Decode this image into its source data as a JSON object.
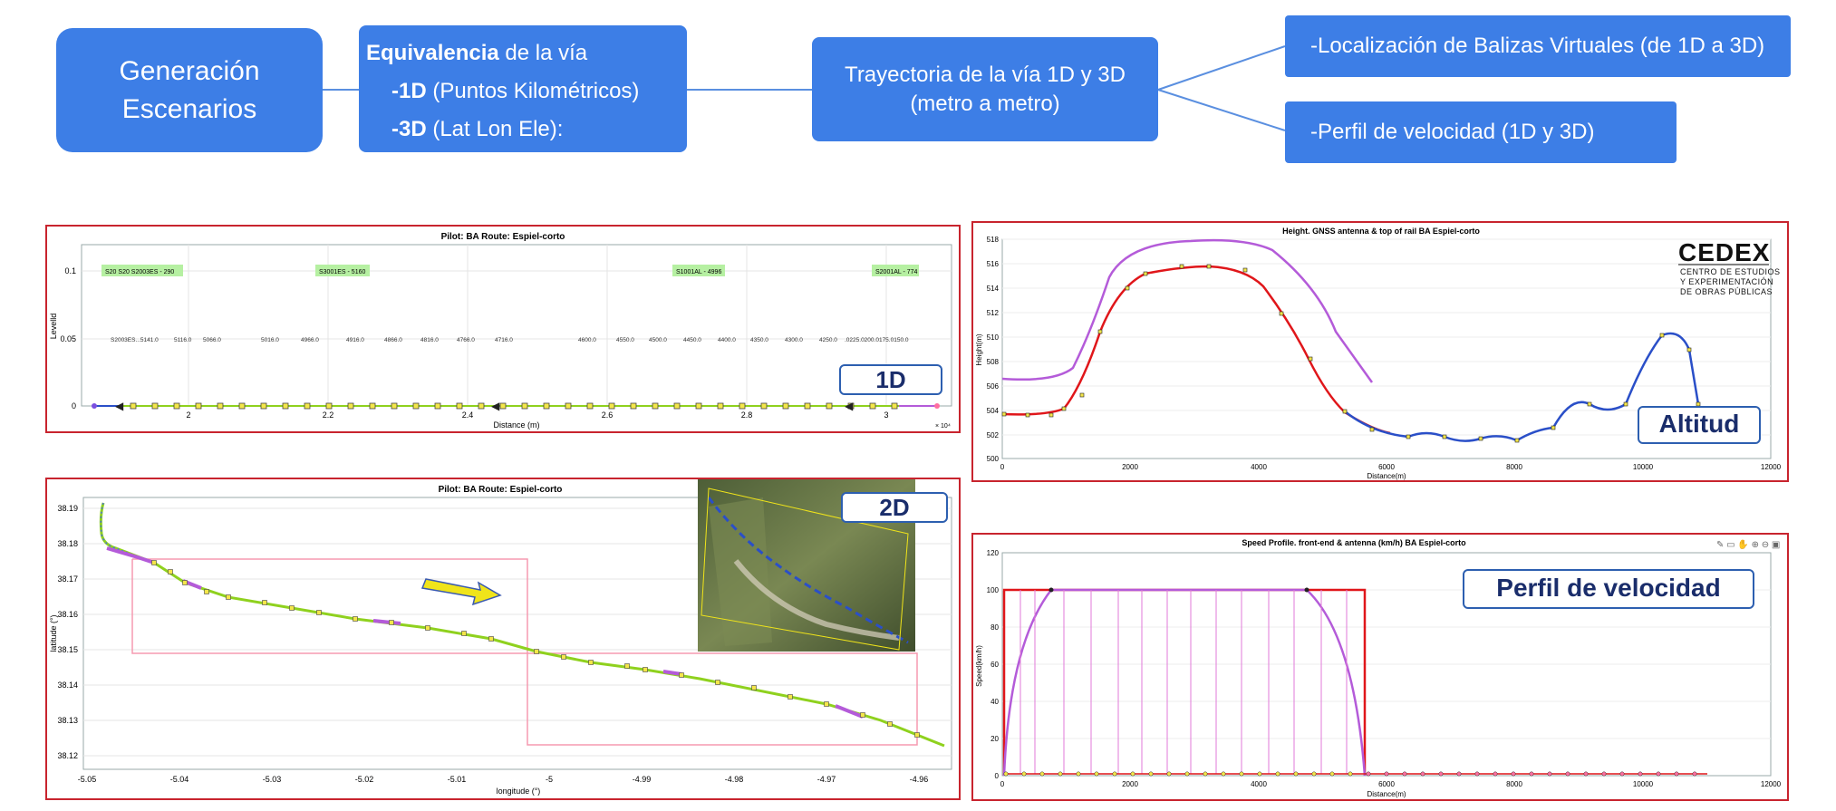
{
  "flow": {
    "generacion": {
      "line1": "Generación",
      "line2": "Escenarios"
    },
    "equivalencia": {
      "title_bold": "Equivalencia",
      "title_rest": " de la vía",
      "item1_bold": "-1D",
      "item1_rest": " (Puntos Kilométricos)",
      "item2_bold": "-3D",
      "item2_rest": " (Lat Lon Ele):"
    },
    "trayectoria": {
      "line1": "Trayectoria de la vía 1D y 3D",
      "line2": "(metro a metro)"
    },
    "balizas": "-Localización de Balizas Virtuales (de 1D a 3D)",
    "perfil": "-Perfil de velocidad (1D y 3D)"
  },
  "panels": {
    "p1d": {
      "title": "Pilot:  BA   Route: Espiel-corto",
      "ylabel": "Levelld",
      "xlabel": "Distance (m)",
      "x_exponent": "× 10⁴",
      "tag": "1D",
      "green_labels": [
        "S20  S20  S2003ES - 290",
        "S3001ES - 5160",
        "S1001AL - 4996",
        "S2001AL - 774"
      ],
      "pk_labels": [
        "5116.0",
        "5066.0",
        "5016.0",
        "4966.0",
        "4916.0",
        "4866.0",
        "4816.0",
        "4766.0",
        "4716.0",
        "4600.0",
        "4550.0",
        "4500.0",
        "4450.0",
        "4400.0",
        "4350.0",
        "4300.0",
        "4250.0"
      ],
      "yticks": [
        "0.1",
        "0.05",
        "0"
      ],
      "xticks": [
        "2",
        "2.2",
        "2.4",
        "2.6",
        "2.8",
        "3"
      ]
    },
    "p2d": {
      "title": "Pilot:  BA   Route: Espiel-corto",
      "ylabel": "latitude (°)",
      "xlabel": "longitude (°)",
      "tag": "2D",
      "yticks": [
        "38.19",
        "38.18",
        "38.17",
        "38.16",
        "38.15",
        "38.14",
        "38.13",
        "38.12"
      ],
      "xticks": [
        "-5.05",
        "-5.04",
        "-5.03",
        "-5.02",
        "-5.01",
        "-5",
        "-4.99",
        "-4.98",
        "-4.97",
        "-4.96"
      ]
    },
    "altitud": {
      "title": "Height. GNSS antenna & top of rail BA  Espiel-corto",
      "ylabel": "Height(m)",
      "xlabel": "Distance(m)",
      "tag": "Altitud",
      "logo_main": "CEDEX",
      "logo_lines": [
        "CENTRO DE ESTUDIOS",
        "Y EXPERIMENTACIÓN",
        "DE OBRAS PÚBLICAS"
      ],
      "yticks": [
        "518",
        "516",
        "514",
        "512",
        "510",
        "508",
        "506",
        "504",
        "502",
        "500"
      ],
      "xticks": [
        "0",
        "2000",
        "4000",
        "6000",
        "8000",
        "10000",
        "12000"
      ]
    },
    "velocidad": {
      "title": "Speed Profile. front-end & antenna (km/h) BA  Espiel-corto",
      "ylabel": "Speed(km/h)",
      "xlabel": "Distance(m)",
      "tag": "Perfil de velocidad",
      "yticks": [
        "120",
        "100",
        "80",
        "60",
        "40",
        "20",
        "0"
      ],
      "xticks": [
        "0",
        "2000",
        "4000",
        "6000",
        "8000",
        "10000",
        "12000"
      ]
    }
  },
  "colors": {
    "box": "#3d7ee6",
    "panel_border": "#c8242e",
    "tag_text": "#1a2d6b",
    "track_green": "#8fd11e",
    "purple": "#b45bd9",
    "blue": "#2a4fc8",
    "red": "#e0161a"
  }
}
